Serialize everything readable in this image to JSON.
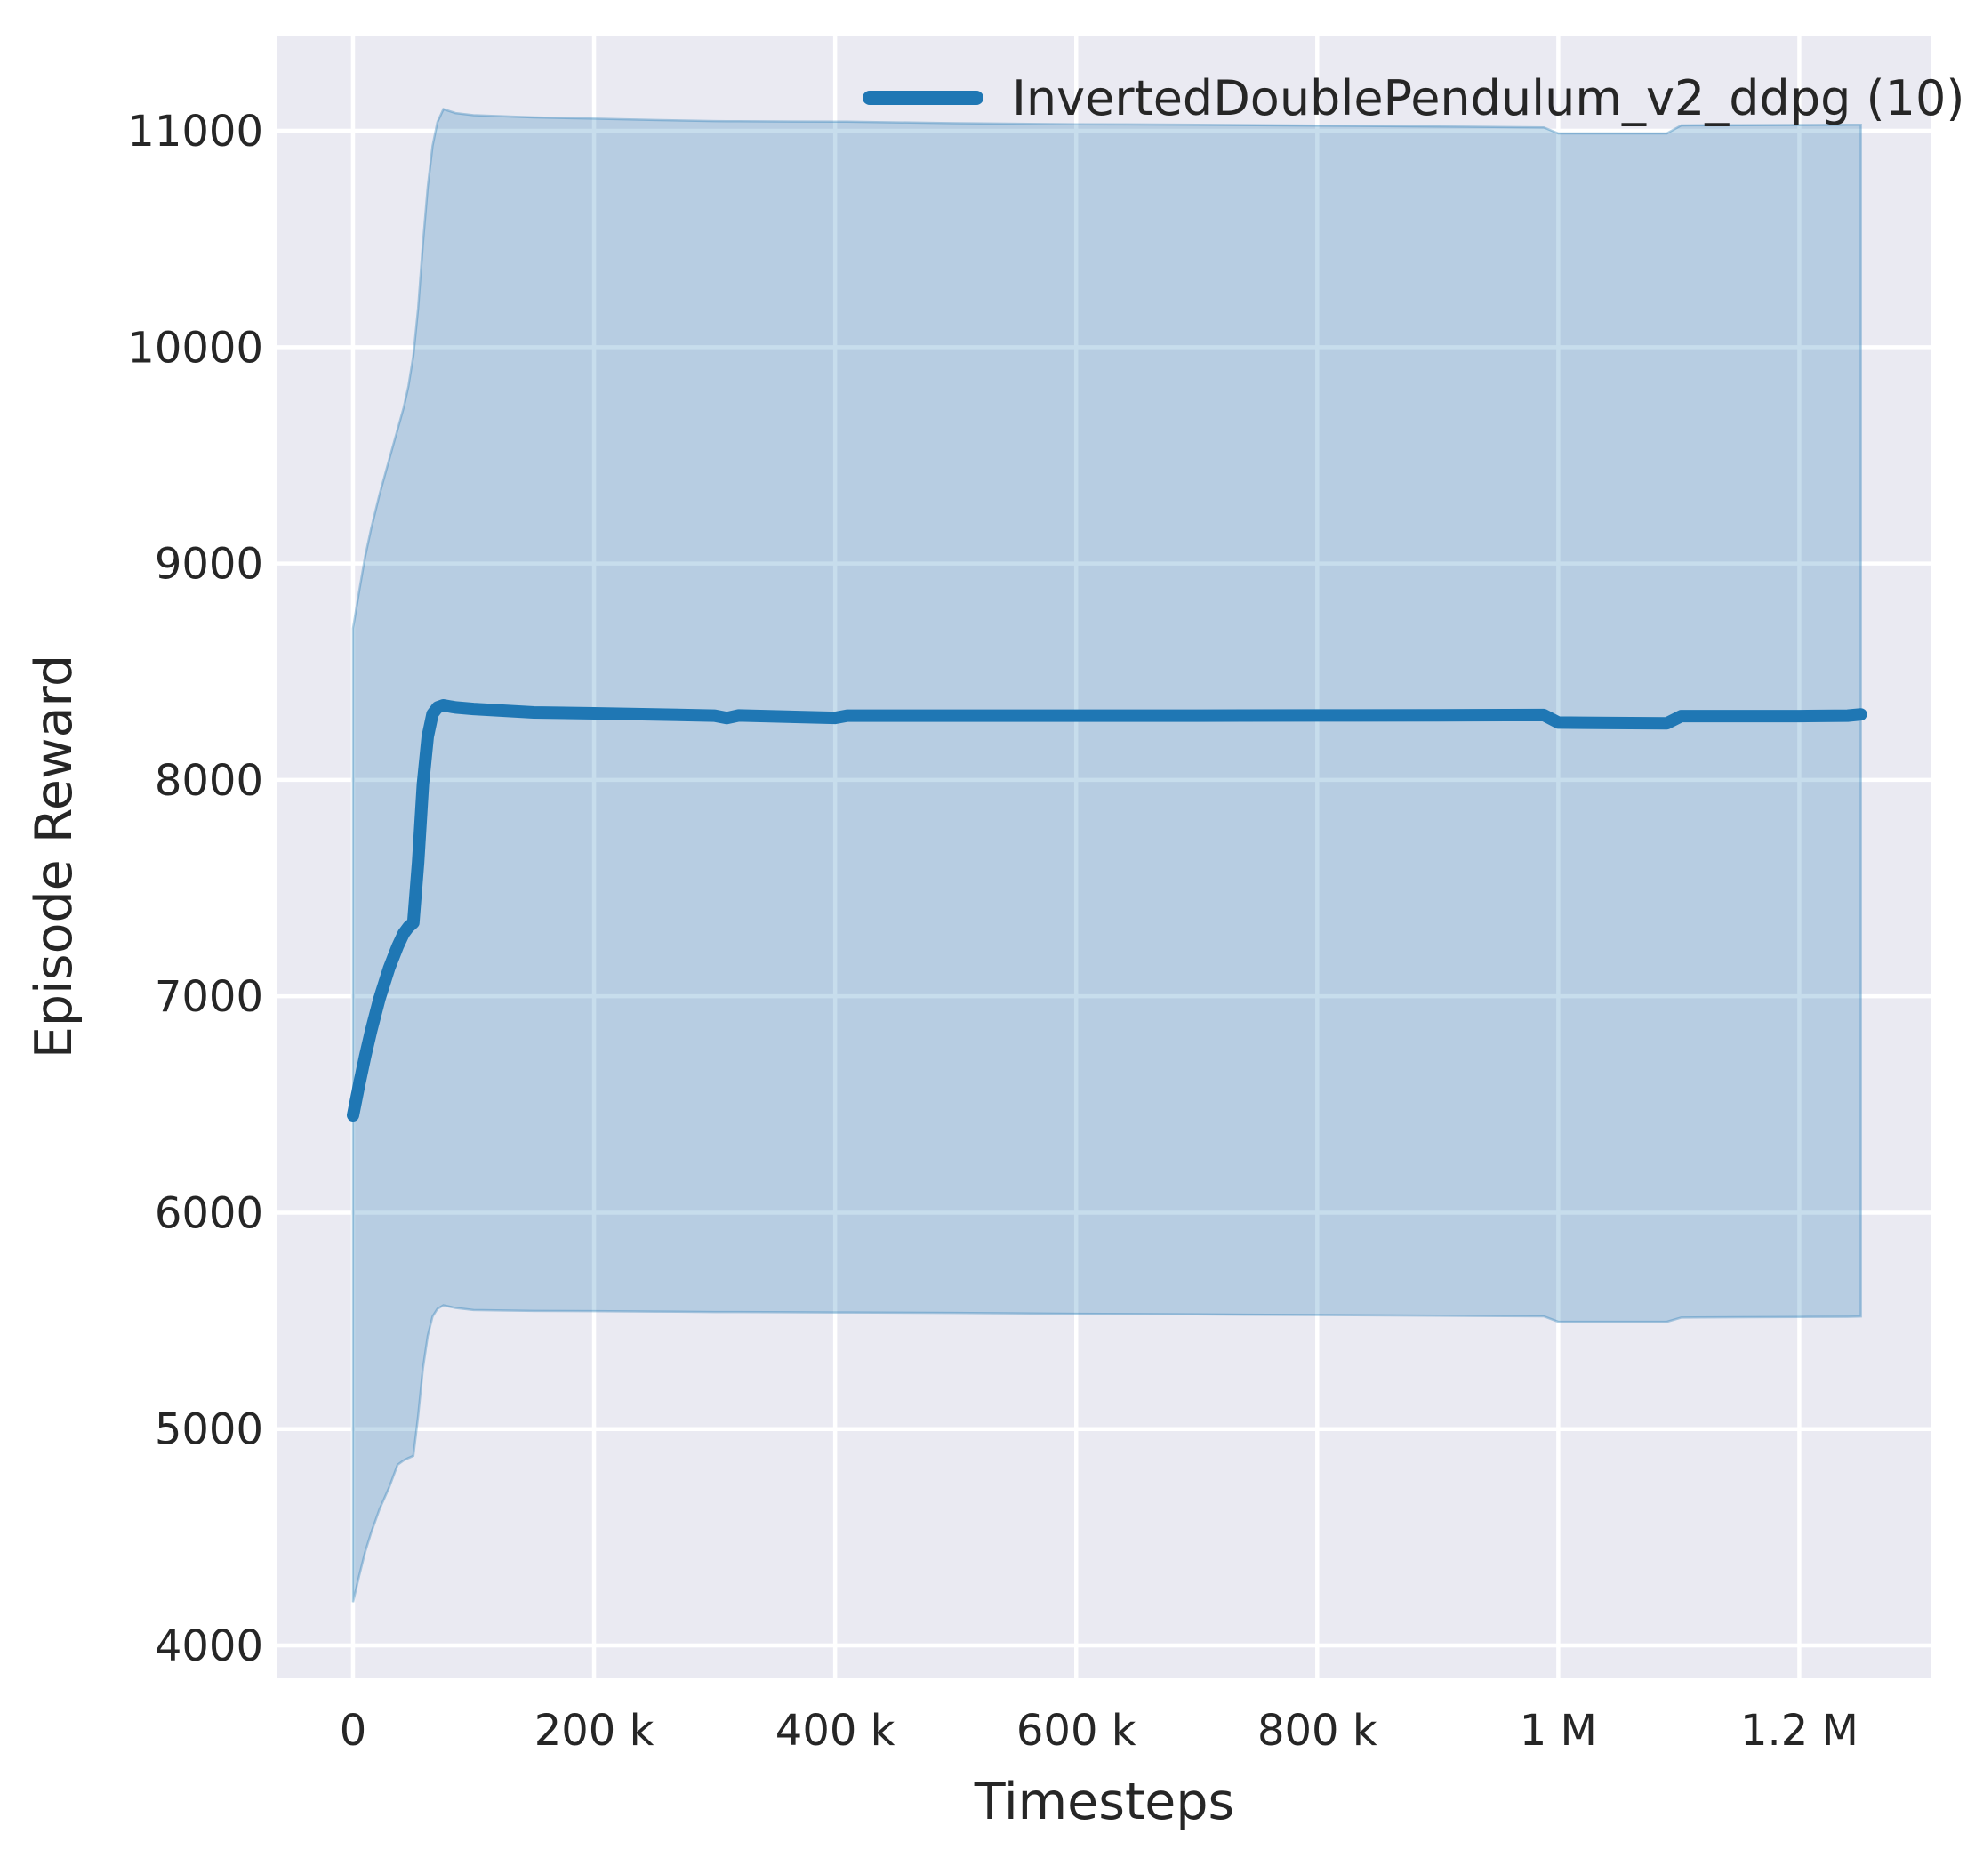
{
  "figure": {
    "background": "#ffffff"
  },
  "chart_data": {
    "type": "line",
    "title": "",
    "xlabel": "Timesteps",
    "ylabel": "Episode Reward",
    "grid": true,
    "legend": {
      "position": "upper right",
      "frame": false,
      "entries": [
        {
          "label": "InvertedDoublePendulum_v2_ddpg (10)",
          "color": "#1f77b4"
        }
      ]
    },
    "style": {
      "plot_bg": "#eaeaf2",
      "grid_color": "#ffffff",
      "line_color": "#1f77b4",
      "band_fill_color": "#1f77b4",
      "band_fill_opacity": 0.25,
      "band_edge_color": "#1f77b4",
      "band_edge_opacity": 0.35,
      "text_color": "#262626"
    },
    "x_axis": {
      "min": -62700,
      "max": 1309600,
      "ticks": [
        {
          "value": 0,
          "label": "0"
        },
        {
          "value": 200000,
          "label": "200 k"
        },
        {
          "value": 400000,
          "label": "400 k"
        },
        {
          "value": 600000,
          "label": "600 k"
        },
        {
          "value": 800000,
          "label": "800 k"
        },
        {
          "value": 1000000,
          "label": "1 M"
        },
        {
          "value": 1200000,
          "label": "1.2 M"
        }
      ]
    },
    "y_axis": {
      "min": 3848,
      "max": 11440,
      "ticks": [
        {
          "value": 4000,
          "label": "4000"
        },
        {
          "value": 5000,
          "label": "5000"
        },
        {
          "value": 6000,
          "label": "6000"
        },
        {
          "value": 7000,
          "label": "7000"
        },
        {
          "value": 8000,
          "label": "8000"
        },
        {
          "value": 9000,
          "label": "9000"
        },
        {
          "value": 10000,
          "label": "10000"
        },
        {
          "value": 11000,
          "label": "11000"
        }
      ]
    },
    "series": [
      {
        "name": "InvertedDoublePendulum_v2_ddpg (10)",
        "x": [
          0,
          5000,
          10000,
          15000,
          22000,
          30000,
          37000,
          42000,
          46000,
          50000,
          54000,
          58000,
          62000,
          66000,
          70000,
          75000,
          85000,
          100000,
          150000,
          200000,
          250000,
          300000,
          310000,
          320000,
          400000,
          410000,
          500000,
          600000,
          700000,
          800000,
          900000,
          988000,
          1000000,
          1045000,
          1090000,
          1102000,
          1150000,
          1200000,
          1240000,
          1251000
        ],
        "mean": [
          6450,
          6590,
          6720,
          6840,
          6990,
          7130,
          7230,
          7290,
          7320,
          7340,
          7620,
          7980,
          8200,
          8305,
          8335,
          8345,
          8335,
          8328,
          8312,
          8308,
          8303,
          8297,
          8286,
          8298,
          8287,
          8297,
          8297,
          8297,
          8297,
          8298,
          8299,
          8300,
          8265,
          8263,
          8262,
          8295,
          8295,
          8295,
          8297,
          8303
        ],
        "band_upper": [
          8700,
          8870,
          9030,
          9160,
          9320,
          9480,
          9620,
          9720,
          9820,
          9960,
          10180,
          10480,
          10740,
          10930,
          11040,
          11100,
          11082,
          11072,
          11062,
          11056,
          11050,
          11045,
          11044,
          11044,
          11042,
          11042,
          11035,
          11030,
          11028,
          11024,
          11020,
          11016,
          10988,
          10988,
          10988,
          11025,
          11026,
          11027,
          11028,
          11028
        ],
        "band_lower": [
          4200,
          4320,
          4430,
          4520,
          4630,
          4730,
          4835,
          4855,
          4866,
          4876,
          5060,
          5280,
          5430,
          5520,
          5556,
          5572,
          5560,
          5550,
          5546,
          5545,
          5543,
          5541,
          5541,
          5541,
          5539,
          5539,
          5537,
          5533,
          5530,
          5527,
          5524,
          5521,
          5496,
          5496,
          5496,
          5515,
          5517,
          5518,
          5519,
          5520
        ]
      }
    ]
  }
}
